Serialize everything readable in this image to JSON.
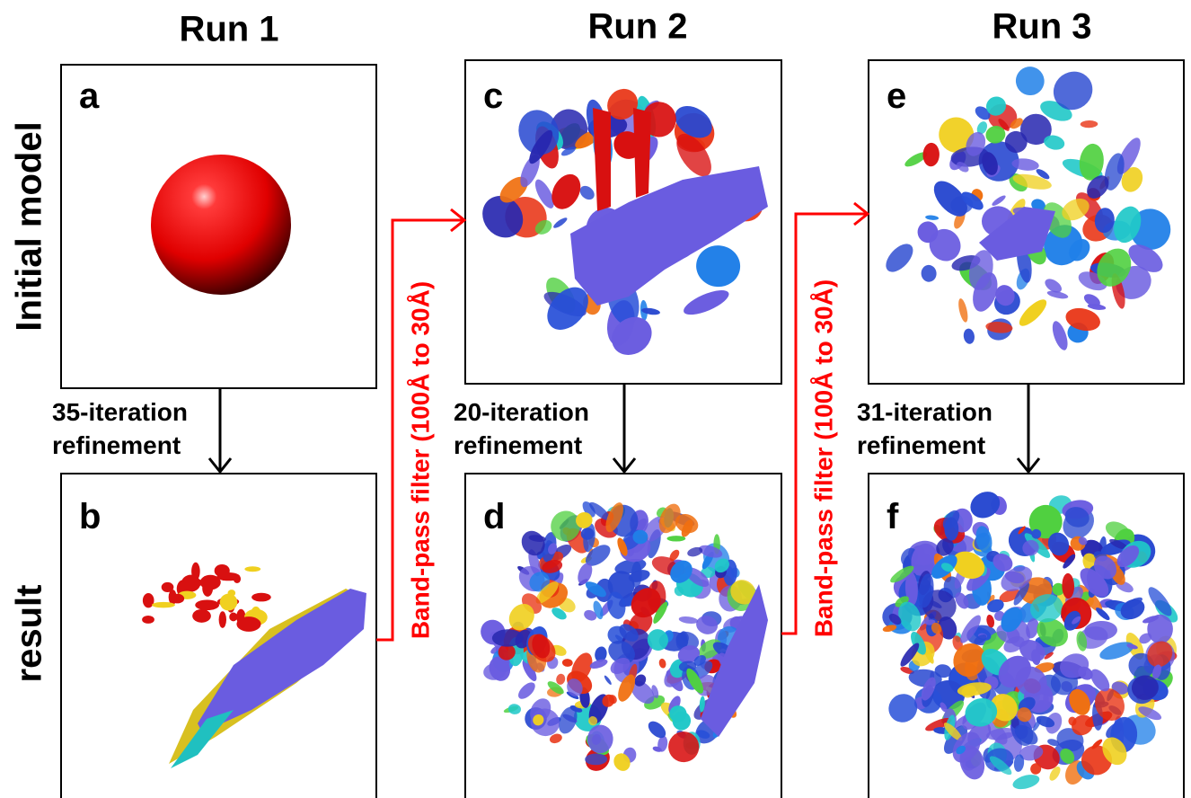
{
  "columns": [
    "Run 1",
    "Run 2",
    "Run 3"
  ],
  "rows": [
    "Initial model",
    "result"
  ],
  "panels": [
    {
      "label": "a"
    },
    {
      "label": "b"
    },
    {
      "label": "c"
    },
    {
      "label": "d"
    },
    {
      "label": "e"
    },
    {
      "label": "f"
    }
  ],
  "refinements": [
    {
      "line1": "35-iteration",
      "line2": "refinement"
    },
    {
      "line1": "20-iteration",
      "line2": "refinement"
    },
    {
      "line1": "31-iteration",
      "line2": "refinement"
    }
  ],
  "filters": [
    "Band-pass filter (100Å to 30Å)",
    "Band-pass filter (100Å to 30Å)"
  ]
}
